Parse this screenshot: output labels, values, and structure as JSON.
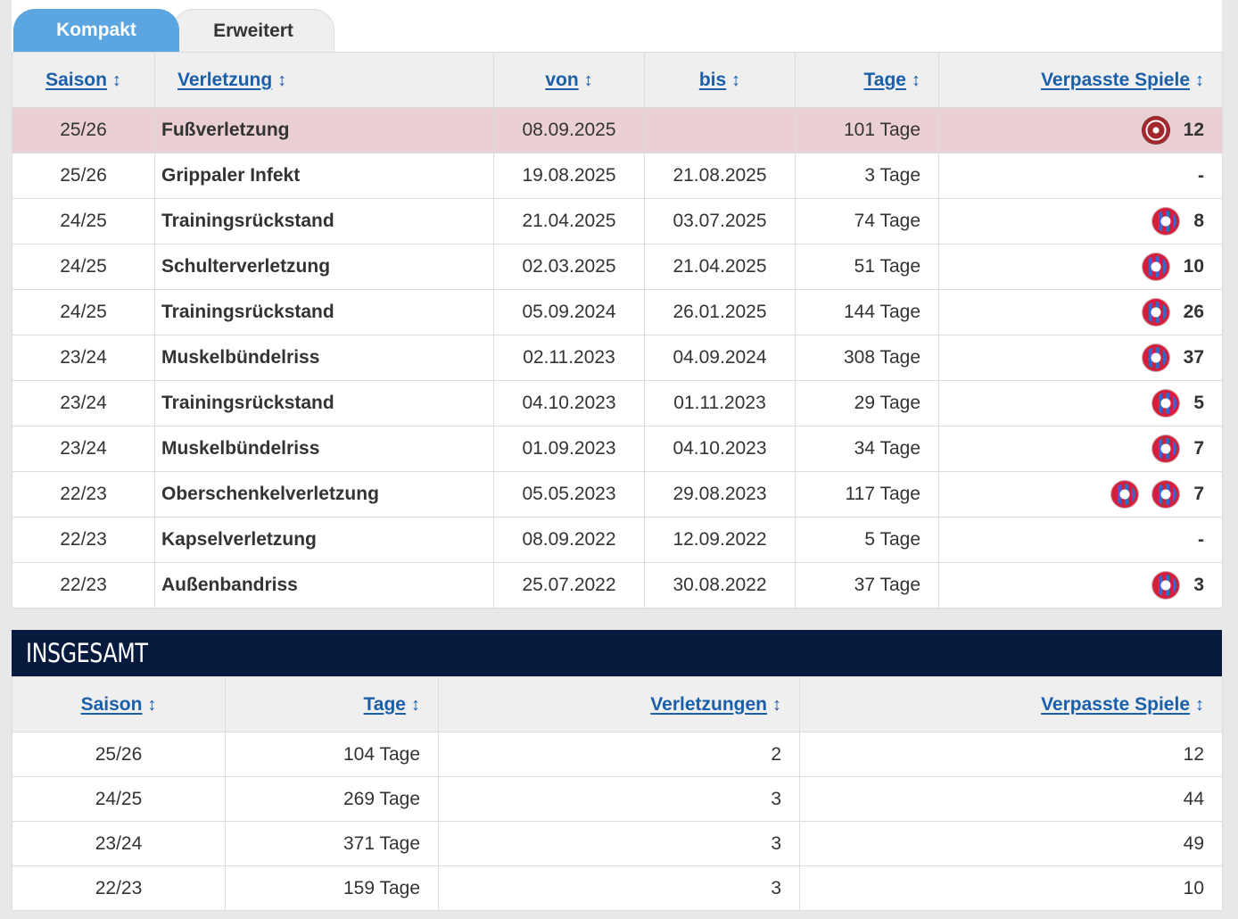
{
  "tabs": [
    {
      "label": "Kompakt",
      "active": true
    },
    {
      "label": "Erweitert",
      "active": false
    }
  ],
  "sort_icon": "↕",
  "injuries": {
    "headers": {
      "season": "Saison",
      "injury": "Verletzung",
      "from": "von",
      "until": "bis",
      "days": "Tage",
      "missed": "Verpasste Spiele"
    },
    "rows": [
      {
        "season": "25/26",
        "injury": "Fußverletzung",
        "from": "08.09.2025",
        "until": "",
        "days": "101 Tage",
        "clubs": [
          "nuernberg-logo"
        ],
        "missed": "12",
        "highlight": true
      },
      {
        "season": "25/26",
        "injury": "Grippaler Infekt",
        "from": "19.08.2025",
        "until": "21.08.2025",
        "days": "3 Tage",
        "clubs": [],
        "missed": "-"
      },
      {
        "season": "24/25",
        "injury": "Trainingsrückstand",
        "from": "21.04.2025",
        "until": "03.07.2025",
        "days": "74 Tage",
        "clubs": [
          "bayern-logo"
        ],
        "missed": "8"
      },
      {
        "season": "24/25",
        "injury": "Schulterverletzung",
        "from": "02.03.2025",
        "until": "21.04.2025",
        "days": "51 Tage",
        "clubs": [
          "bayern-logo"
        ],
        "missed": "10"
      },
      {
        "season": "24/25",
        "injury": "Trainingsrückstand",
        "from": "05.09.2024",
        "until": "26.01.2025",
        "days": "144 Tage",
        "clubs": [
          "bayern-logo"
        ],
        "missed": "26"
      },
      {
        "season": "23/24",
        "injury": "Muskelbündelriss",
        "from": "02.11.2023",
        "until": "04.09.2024",
        "days": "308 Tage",
        "clubs": [
          "bayern-logo"
        ],
        "missed": "37"
      },
      {
        "season": "23/24",
        "injury": "Trainingsrückstand",
        "from": "04.10.2023",
        "until": "01.11.2023",
        "days": "29 Tage",
        "clubs": [
          "bayern-logo"
        ],
        "missed": "5"
      },
      {
        "season": "23/24",
        "injury": "Muskelbündelriss",
        "from": "01.09.2023",
        "until": "04.10.2023",
        "days": "34 Tage",
        "clubs": [
          "bayern-logo"
        ],
        "missed": "7"
      },
      {
        "season": "22/23",
        "injury": "Oberschenkelverletzung",
        "from": "05.05.2023",
        "until": "29.08.2023",
        "days": "117 Tage",
        "clubs": [
          "bayern-logo",
          "bayern-logo"
        ],
        "missed": "7"
      },
      {
        "season": "22/23",
        "injury": "Kapselverletzung",
        "from": "08.09.2022",
        "until": "12.09.2022",
        "days": "5 Tage",
        "clubs": [],
        "missed": "-"
      },
      {
        "season": "22/23",
        "injury": "Außenbandriss",
        "from": "25.07.2022",
        "until": "30.08.2022",
        "days": "37 Tage",
        "clubs": [
          "bayern-logo"
        ],
        "missed": "3"
      }
    ]
  },
  "totals": {
    "title": "INSGESAMT",
    "headers": {
      "season": "Saison",
      "days": "Tage",
      "injuries": "Verletzungen",
      "missed": "Verpasste Spiele"
    },
    "rows": [
      {
        "season": "25/26",
        "days": "104 Tage",
        "injuries": "2",
        "missed": "12"
      },
      {
        "season": "24/25",
        "days": "269 Tage",
        "injuries": "3",
        "missed": "44"
      },
      {
        "season": "23/24",
        "days": "371 Tage",
        "injuries": "3",
        "missed": "49"
      },
      {
        "season": "22/23",
        "days": "159 Tage",
        "injuries": "3",
        "missed": "10"
      }
    ]
  }
}
